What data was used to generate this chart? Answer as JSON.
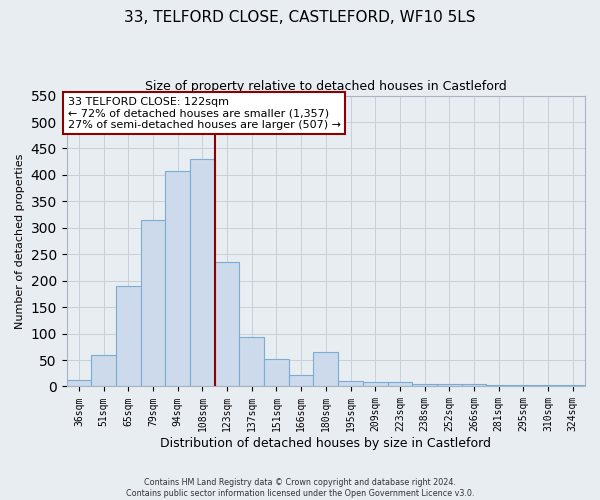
{
  "title": "33, TELFORD CLOSE, CASTLEFORD, WF10 5LS",
  "subtitle": "Size of property relative to detached houses in Castleford",
  "xlabel": "Distribution of detached houses by size in Castleford",
  "ylabel": "Number of detached properties",
  "bar_labels": [
    "36sqm",
    "51sqm",
    "65sqm",
    "79sqm",
    "94sqm",
    "108sqm",
    "123sqm",
    "137sqm",
    "151sqm",
    "166sqm",
    "180sqm",
    "195sqm",
    "209sqm",
    "223sqm",
    "238sqm",
    "252sqm",
    "266sqm",
    "281sqm",
    "295sqm",
    "310sqm",
    "324sqm"
  ],
  "bar_heights": [
    13,
    60,
    190,
    315,
    408,
    430,
    235,
    93,
    52,
    22,
    65,
    10,
    8,
    8,
    5,
    5,
    5,
    3,
    3,
    2,
    3
  ],
  "bar_color": "#ccdaeb",
  "bar_edge_color": "#7aadd4",
  "marker_label": "33 TELFORD CLOSE: 122sqm",
  "annotation_line1": "← 72% of detached houses are smaller (1,357)",
  "annotation_line2": "27% of semi-detached houses are larger (507) →",
  "vline_color": "#8b0000",
  "vline_x_index": 6,
  "ylim": [
    0,
    550
  ],
  "yticks": [
    0,
    50,
    100,
    150,
    200,
    250,
    300,
    350,
    400,
    450,
    500,
    550
  ],
  "footer_line1": "Contains HM Land Registry data © Crown copyright and database right 2024.",
  "footer_line2": "Contains public sector information licensed under the Open Government Licence v3.0.",
  "bg_color": "#e8edf2",
  "plot_bg_color": "#e8edf2",
  "grid_color": "#c8d0da",
  "title_fontsize": 11,
  "subtitle_fontsize": 9,
  "tick_fontsize": 7,
  "ylabel_fontsize": 8,
  "xlabel_fontsize": 9
}
